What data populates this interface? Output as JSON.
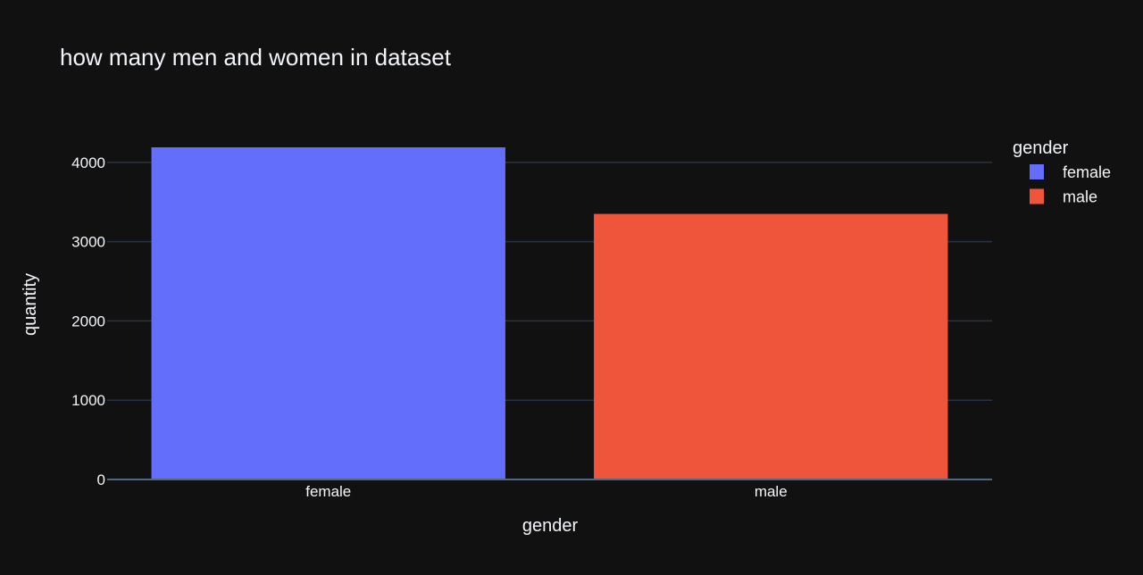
{
  "chart_data": {
    "type": "bar",
    "title": "how many men and women in dataset",
    "xlabel": "gender",
    "ylabel": "quantity",
    "categories": [
      "female",
      "male"
    ],
    "values": [
      4190,
      3350
    ],
    "colors": [
      "#636efa",
      "#ef553b"
    ],
    "ylim": [
      0,
      4190
    ],
    "yticks": [
      0,
      1000,
      2000,
      3000,
      4000
    ],
    "grid": true,
    "legend": {
      "title": "gender",
      "placement": "top-right",
      "entries": [
        "female",
        "male"
      ]
    },
    "background": "#111111"
  }
}
